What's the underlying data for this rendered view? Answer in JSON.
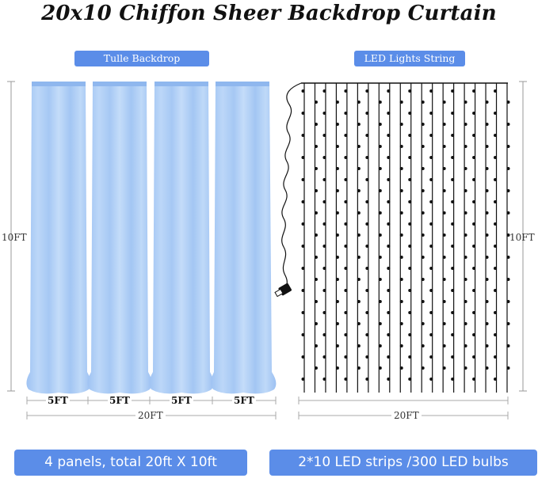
{
  "title": "20x10 Chiffon Sheer Backdrop Curtain",
  "left_section": {
    "label": "Tulle Backdrop",
    "height_label": "10FT",
    "panel_width_labels": [
      "5FT",
      "5FT",
      "5FT",
      "5FT"
    ],
    "total_width_label": "20FT"
  },
  "right_section": {
    "label": "LED Lights String",
    "height_label": "10FT",
    "total_width_label": "20FT"
  },
  "footer": {
    "left_text": "4 panels, total 20ft X 10ft",
    "right_text": "2*10 LED strips /300 LED bulbs"
  },
  "colors": {
    "accent": "#5b8de8",
    "curtain": "#a9cbf5",
    "curtain_shadow": "#8fb7ee"
  }
}
